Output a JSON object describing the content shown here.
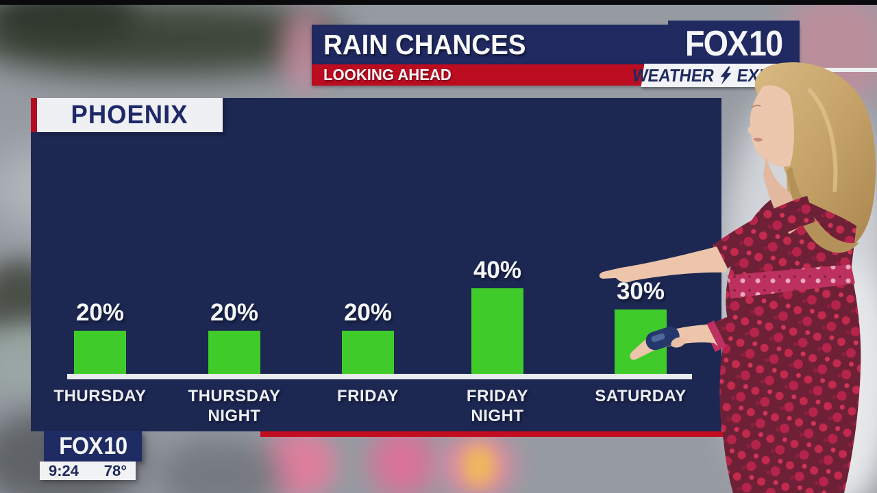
{
  "header": {
    "title": "RAIN CHANCES",
    "subtitle": "LOOKING AHEAD"
  },
  "brand": {
    "station": "FOX 10",
    "weather_label": "WEATHER",
    "experts_label": "EXPERTS"
  },
  "bug": {
    "station": "FOX 10",
    "time": "9:24",
    "temp": "78°"
  },
  "panel": {
    "location": "PHOENIX"
  },
  "chart_data": {
    "type": "bar",
    "title": "RAIN CHANCES",
    "subtitle": "LOOKING AHEAD",
    "location": "PHOENIX",
    "categories": [
      "THURSDAY",
      "THURSDAY NIGHT",
      "FRIDAY",
      "FRIDAY NIGHT",
      "SATURDAY"
    ],
    "categories_lines": [
      [
        "THURSDAY"
      ],
      [
        "THURSDAY",
        "NIGHT"
      ],
      [
        "FRIDAY"
      ],
      [
        "FRIDAY",
        "NIGHT"
      ],
      [
        "SATURDAY"
      ]
    ],
    "values": [
      20,
      20,
      20,
      40,
      30
    ],
    "value_labels": [
      "20%",
      "20%",
      "20%",
      "40%",
      "30%"
    ],
    "unit": "percent",
    "ylim": [
      0,
      100
    ],
    "grid": false,
    "legend": false,
    "bar_color": "#3fcb29",
    "label_color": "#f5f6f7",
    "note": "Saturday value label partially occluded by presenter's pointing hand"
  },
  "colors": {
    "header_navy": "#202a60",
    "panel_navy": "#1c2752",
    "accent_red": "#bb0c20",
    "bar_green": "#3fcb29"
  },
  "presenter": {
    "description": "Weather presenter with long blonde hair in a dark red floral dress, pointing at the Saturday rain chance and holding a clicker remote"
  }
}
